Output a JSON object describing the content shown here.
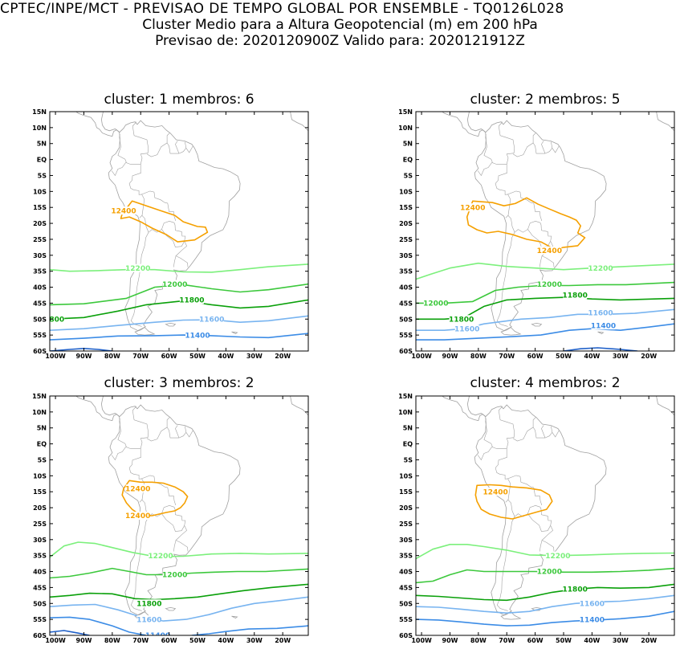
{
  "header": {
    "line1": "CPTEC/INPE/MCT - PREVISAO DE TEMPO GLOBAL POR ENSEMBLE - TQ0126L028",
    "line2": "Cluster Medio para a Altura Geopotencial (m) em 200 hPa",
    "line3": "Previsao de: 2020120900Z    Valido para: 2020121912Z"
  },
  "axes": {
    "lat_labels": [
      "15N",
      "10N",
      "5N",
      "EQ",
      "5S",
      "10S",
      "15S",
      "20S",
      "25S",
      "30S",
      "35S",
      "40S",
      "45S",
      "50S",
      "55S",
      "60S"
    ],
    "lon_labels": [
      "100W",
      "90W",
      "80W",
      "70W",
      "60W",
      "50W",
      "40W",
      "30W",
      "20W"
    ]
  },
  "colors": {
    "c12400": "#f5a000",
    "c12200": "#7cf07c",
    "c12000": "#3cc83c",
    "c11800": "#0aa00a",
    "c11600": "#78b4f0",
    "c11400": "#3c8ce6",
    "c11200": "#1e5fc8",
    "map": "#a0a0a0"
  },
  "panels": [
    {
      "title": "cluster: 1   membros: 6",
      "labels": [
        {
          "level": "12400",
          "text": "12400",
          "lon": -76,
          "lat": -16
        },
        {
          "level": "12200",
          "text": "12200",
          "lon": -71,
          "lat": -34
        },
        {
          "level": "12000",
          "text": "12000",
          "lon": -58,
          "lat": -39
        },
        {
          "level": "11800",
          "text": "11800",
          "lon": -52,
          "lat": -44
        },
        {
          "level": "11600",
          "text": "11600",
          "lon": -45,
          "lat": -50
        },
        {
          "level": "11400",
          "text": "11400",
          "lon": -50,
          "lat": -55
        },
        {
          "level": "11800",
          "text": "800",
          "lon": -99.5,
          "lat": -50
        }
      ]
    },
    {
      "title": "cluster: 2   membros: 5",
      "labels": [
        {
          "level": "12400",
          "text": "12400",
          "lon": -82,
          "lat": -15
        },
        {
          "level": "12400",
          "text": "12400",
          "lon": -55,
          "lat": -28.5
        },
        {
          "level": "12200",
          "text": "12200",
          "lon": -37,
          "lat": -34
        },
        {
          "level": "12000",
          "text": "12000",
          "lon": -55,
          "lat": -39
        },
        {
          "level": "12000",
          "text": "12000",
          "lon": -95,
          "lat": -45
        },
        {
          "level": "11800",
          "text": "11800",
          "lon": -46,
          "lat": -42.5
        },
        {
          "level": "11800",
          "text": "11800",
          "lon": -86,
          "lat": -50
        },
        {
          "level": "11600",
          "text": "11600",
          "lon": -37,
          "lat": -48
        },
        {
          "level": "11600",
          "text": "11600",
          "lon": -84,
          "lat": -53
        },
        {
          "level": "11400",
          "text": "11400",
          "lon": -36,
          "lat": -52
        }
      ]
    },
    {
      "title": "cluster: 3   membros: 2",
      "labels": [
        {
          "level": "12400",
          "text": "12400",
          "lon": -71,
          "lat": -14
        },
        {
          "level": "12400",
          "text": "12400",
          "lon": -71,
          "lat": -22.5
        },
        {
          "level": "12200",
          "text": "12200",
          "lon": -63,
          "lat": -35
        },
        {
          "level": "12000",
          "text": "12000",
          "lon": -58,
          "lat": -41
        },
        {
          "level": "11800",
          "text": "11800",
          "lon": -67,
          "lat": -50
        },
        {
          "level": "11600",
          "text": "11600",
          "lon": -67,
          "lat": -55
        },
        {
          "level": "11400",
          "text": "11400",
          "lon": -64,
          "lat": -60
        }
      ]
    },
    {
      "title": "cluster: 4   membros: 2",
      "labels": [
        {
          "level": "12400",
          "text": "12400",
          "lon": -74,
          "lat": -15
        },
        {
          "level": "12200",
          "text": "12200",
          "lon": -52,
          "lat": -35
        },
        {
          "level": "12000",
          "text": "12000",
          "lon": -55,
          "lat": -40
        },
        {
          "level": "11800",
          "text": "11800",
          "lon": -46,
          "lat": -45.5
        },
        {
          "level": "11600",
          "text": "11600",
          "lon": -40,
          "lat": -50
        },
        {
          "level": "11400",
          "text": "11400",
          "lon": -40,
          "lat": -55
        }
      ]
    }
  ]
}
